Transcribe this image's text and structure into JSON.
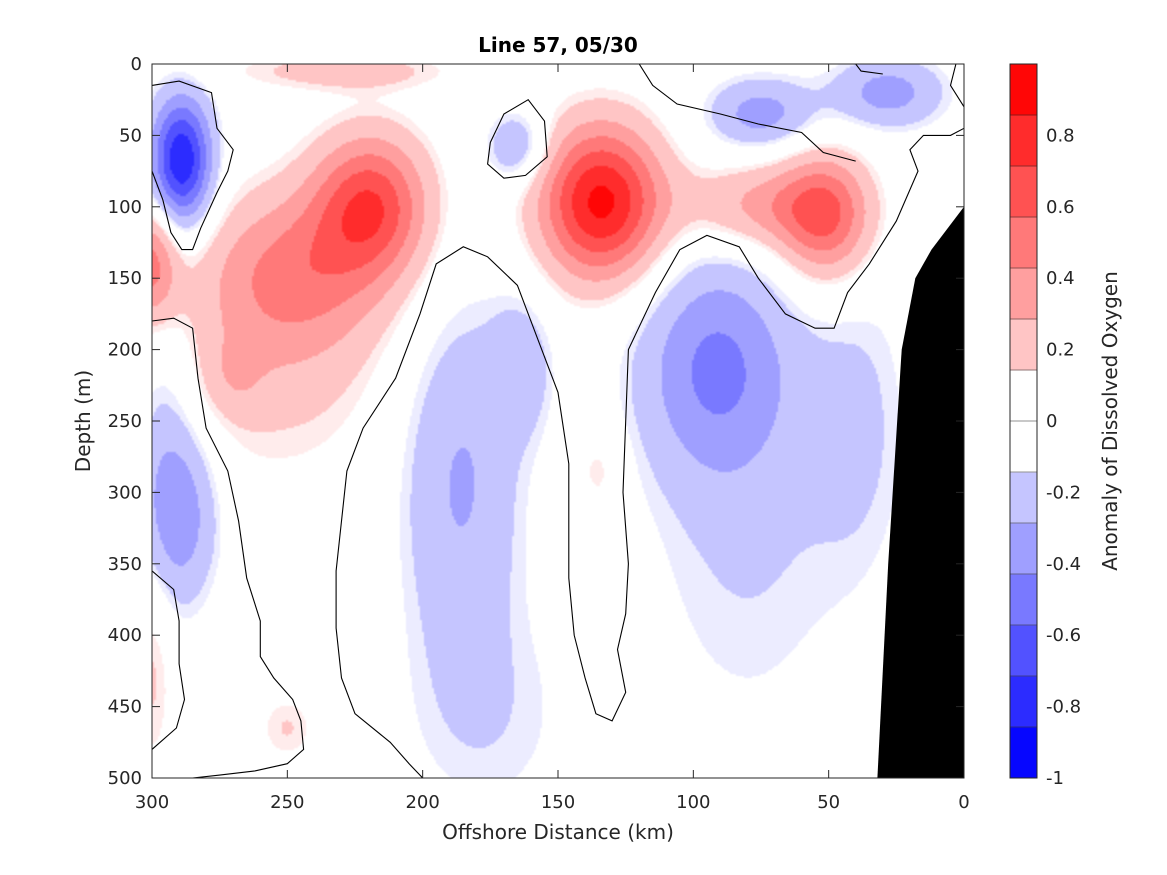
{
  "chart_data": {
    "type": "heatmap",
    "title": "Line 57, 05/30",
    "xlabel": "Offshore Distance (km)",
    "ylabel": "Depth (m)",
    "xlim": [
      300,
      0
    ],
    "ylim": [
      0,
      500
    ],
    "x_reversed": true,
    "y_reversed": true,
    "x_ticks": [
      300,
      250,
      200,
      150,
      100,
      50,
      0
    ],
    "y_ticks": [
      0,
      50,
      100,
      150,
      200,
      250,
      300,
      350,
      400,
      450,
      500
    ],
    "colorbar": {
      "label": "Anomaly of Dissolved Oxygen",
      "range": [
        -1,
        1
      ],
      "levels": 14,
      "ticks": [
        -1,
        -0.8,
        -0.6,
        -0.4,
        -0.2,
        0,
        0.2,
        0.4,
        0.6,
        0.8
      ],
      "tick_labels": [
        "-1",
        "-0.8",
        "-0.6",
        "-0.4",
        "-0.2",
        "0",
        "0.2",
        "0.4",
        "0.6",
        "0.8"
      ],
      "negative_color": "#0000ff",
      "positive_color": "#ff0000",
      "zero_color": "#ffffff"
    },
    "anomaly_features": [
      {
        "x": 289,
        "y": 68,
        "value": -0.85,
        "sx": 8,
        "sy": 32
      },
      {
        "x": 289,
        "y": 315,
        "value": -0.35,
        "sx": 10,
        "sy": 45
      },
      {
        "x": 296,
        "y": 250,
        "value": -0.15,
        "sx": 8,
        "sy": 90
      },
      {
        "x": 186,
        "y": 290,
        "value": -0.3,
        "sx": 16,
        "sy": 90
      },
      {
        "x": 163,
        "y": 210,
        "value": -0.2,
        "sx": 8,
        "sy": 35
      },
      {
        "x": 175,
        "y": 460,
        "value": -0.12,
        "sx": 25,
        "sy": 60
      },
      {
        "x": 92,
        "y": 210,
        "value": -0.4,
        "sx": 20,
        "sy": 55
      },
      {
        "x": 80,
        "y": 330,
        "value": -0.15,
        "sx": 28,
        "sy": 110
      },
      {
        "x": 75,
        "y": 35,
        "value": -0.35,
        "sx": 14,
        "sy": 18
      },
      {
        "x": 28,
        "y": 20,
        "value": -0.35,
        "sx": 15,
        "sy": 18
      },
      {
        "x": 38,
        "y": 250,
        "value": -0.14,
        "sx": 14,
        "sy": 80
      },
      {
        "x": 165,
        "y": 58,
        "value": -0.3,
        "sx": 8,
        "sy": 18
      },
      {
        "x": 134,
        "y": 97,
        "value": 0.9,
        "sx": 16,
        "sy": 38
      },
      {
        "x": 219,
        "y": 98,
        "value": 0.65,
        "sx": 15,
        "sy": 35
      },
      {
        "x": 247,
        "y": 145,
        "value": 0.4,
        "sx": 24,
        "sy": 40
      },
      {
        "x": 255,
        "y": 210,
        "value": 0.18,
        "sx": 30,
        "sy": 60
      },
      {
        "x": 51,
        "y": 108,
        "value": 0.55,
        "sx": 12,
        "sy": 32
      },
      {
        "x": 75,
        "y": 100,
        "value": 0.35,
        "sx": 20,
        "sy": 22
      },
      {
        "x": 300,
        "y": 140,
        "value": 0.5,
        "sx": 7,
        "sy": 30
      },
      {
        "x": 300,
        "y": 420,
        "value": 0.18,
        "sx": 6,
        "sy": 55
      },
      {
        "x": 250,
        "y": 465,
        "value": 0.15,
        "sx": 8,
        "sy": 18
      },
      {
        "x": 135,
        "y": 285,
        "value": 0.15,
        "sx": 6,
        "sy": 22
      },
      {
        "x": 230,
        "y": 5,
        "value": 0.2,
        "sx": 30,
        "sy": 10
      },
      {
        "x": 270,
        "y": 220,
        "value": 0.12,
        "sx": 8,
        "sy": 20
      }
    ],
    "zero_contours": [
      [
        [
          300,
          15
        ],
        [
          290,
          12
        ],
        [
          278,
          20
        ],
        [
          276,
          45
        ],
        [
          270,
          60
        ],
        [
          272,
          75
        ],
        [
          276,
          90
        ],
        [
          282,
          115
        ],
        [
          285,
          130
        ],
        [
          289,
          130
        ],
        [
          293,
          118
        ],
        [
          296,
          95
        ],
        [
          300,
          75
        ]
      ],
      [
        [
          175,
          55
        ],
        [
          170,
          35
        ],
        [
          161,
          25
        ],
        [
          155,
          40
        ],
        [
          154,
          65
        ],
        [
          162,
          78
        ],
        [
          170,
          80
        ],
        [
          176,
          70
        ],
        [
          175,
          55
        ]
      ],
      [
        [
          300,
          180
        ],
        [
          292,
          178
        ],
        [
          285,
          185
        ],
        [
          283,
          220
        ],
        [
          280,
          255
        ],
        [
          272,
          285
        ],
        [
          268,
          320
        ],
        [
          265,
          360
        ],
        [
          260,
          390
        ],
        [
          260,
          415
        ],
        [
          255,
          430
        ],
        [
          248,
          445
        ],
        [
          245,
          460
        ],
        [
          244,
          480
        ],
        [
          250,
          490
        ],
        [
          262,
          495
        ],
        [
          275,
          498
        ],
        [
          285,
          500
        ]
      ],
      [
        [
          300,
          355
        ],
        [
          292,
          368
        ],
        [
          290,
          390
        ],
        [
          290,
          420
        ],
        [
          288,
          445
        ],
        [
          291,
          465
        ],
        [
          300,
          480
        ]
      ],
      [
        [
          200,
          500
        ],
        [
          205,
          490
        ],
        [
          212,
          475
        ],
        [
          225,
          455
        ],
        [
          230,
          430
        ],
        [
          232,
          395
        ],
        [
          232,
          355
        ],
        [
          230,
          320
        ],
        [
          228,
          285
        ],
        [
          222,
          255
        ],
        [
          210,
          220
        ],
        [
          201,
          175
        ],
        [
          195,
          140
        ],
        [
          185,
          128
        ],
        [
          176,
          135
        ],
        [
          165,
          155
        ],
        [
          158,
          190
        ],
        [
          150,
          230
        ],
        [
          146,
          280
        ],
        [
          146,
          320
        ],
        [
          146,
          360
        ],
        [
          144,
          400
        ],
        [
          140,
          430
        ],
        [
          136,
          455
        ],
        [
          130,
          460
        ],
        [
          125,
          440
        ],
        [
          128,
          410
        ],
        [
          125,
          385
        ],
        [
          124,
          350
        ],
        [
          126,
          300
        ],
        [
          125,
          250
        ],
        [
          124,
          200
        ],
        [
          114,
          160
        ],
        [
          105,
          130
        ],
        [
          95,
          120
        ],
        [
          83,
          128
        ],
        [
          76,
          150
        ],
        [
          66,
          175
        ],
        [
          55,
          185
        ],
        [
          48,
          185
        ],
        [
          43,
          160
        ],
        [
          35,
          140
        ],
        [
          25,
          110
        ],
        [
          17,
          75
        ],
        [
          20,
          60
        ],
        [
          15,
          50
        ],
        [
          5,
          50
        ],
        [
          0,
          45
        ]
      ],
      [
        [
          3,
          0
        ],
        [
          5,
          15
        ],
        [
          0,
          30
        ]
      ],
      [
        [
          120,
          0
        ],
        [
          115,
          15
        ],
        [
          106,
          28
        ],
        [
          90,
          35
        ],
        [
          76,
          42
        ],
        [
          60,
          48
        ],
        [
          52,
          62
        ],
        [
          40,
          68
        ]
      ],
      [
        [
          40,
          0
        ],
        [
          38,
          5
        ],
        [
          30,
          7
        ]
      ]
    ],
    "land_polygon": [
      [
        32,
        500
      ],
      [
        28,
        350
      ],
      [
        23,
        200
      ],
      [
        18,
        150
      ],
      [
        12,
        130
      ],
      [
        0,
        100
      ],
      [
        0,
        500
      ]
    ],
    "contour_color": "#000000",
    "land_color": "#000000"
  }
}
